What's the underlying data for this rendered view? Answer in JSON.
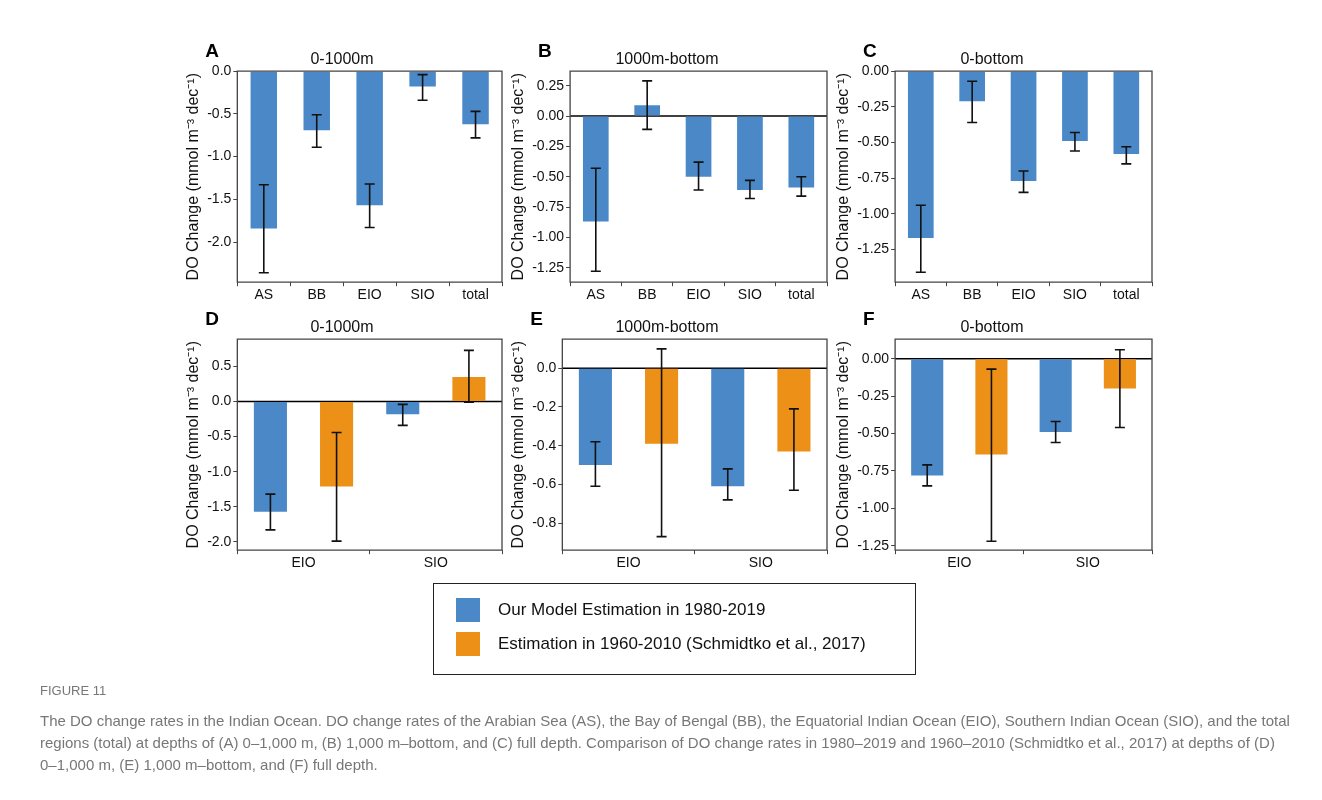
{
  "chart_data": [
    {
      "type": "bar",
      "title": "0-1000m",
      "ylabel": "DO Change (mmol m⁻³ dec⁻¹)",
      "annotations": [
        "A"
      ],
      "categories": [
        "AS",
        "BB",
        "EIO",
        "SIO",
        "total"
      ],
      "color": "#4a88c7",
      "values": [
        -1.84,
        -0.69,
        -1.57,
        -0.18,
        -0.62
      ],
      "errors": [
        [
          -2.36,
          -1.33
        ],
        [
          -0.89,
          -0.51
        ],
        [
          -1.83,
          -1.32
        ],
        [
          -0.34,
          -0.04
        ],
        [
          -0.78,
          -0.47
        ]
      ],
      "ylim": [
        -2.47,
        0
      ],
      "yticks": [
        {
          "value": 0,
          "label": "0.0"
        },
        {
          "value": -0.5,
          "label": "-0.5"
        },
        {
          "value": -1,
          "label": "-1.0"
        },
        {
          "value": -1.5,
          "label": "-1.5"
        },
        {
          "value": -2,
          "label": "-2.0"
        }
      ]
    },
    {
      "type": "bar",
      "title": "1000m-bottom",
      "ylabel": "DO Change (mmol m⁻³ dec⁻¹)",
      "annotations": [
        "B"
      ],
      "categories": [
        "AS",
        "BB",
        "EIO",
        "SIO",
        "total"
      ],
      "color": "#4a88c7",
      "values": [
        -0.87,
        0.09,
        -0.5,
        -0.61,
        -0.59
      ],
      "errors": [
        [
          -1.28,
          -0.43
        ],
        [
          -0.11,
          0.29
        ],
        [
          -0.61,
          -0.38
        ],
        [
          -0.68,
          -0.53
        ],
        [
          -0.66,
          -0.5
        ]
      ],
      "ylim": [
        -1.37,
        0.37
      ],
      "yticks": [
        {
          "value": 0.25,
          "label": "0.25"
        },
        {
          "value": 0,
          "label": "0.00"
        },
        {
          "value": -0.25,
          "label": "-0.25"
        },
        {
          "value": -0.5,
          "label": "-0.50"
        },
        {
          "value": -0.75,
          "label": "-0.75"
        },
        {
          "value": -1,
          "label": "-1.00"
        },
        {
          "value": -1.25,
          "label": "-1.25"
        }
      ],
      "ref_lines": [
        {
          "axis": "y",
          "value": 0,
          "color": "#000000"
        }
      ]
    },
    {
      "type": "bar",
      "title": "0-bottom",
      "ylabel": "DO Change (mmol m⁻³ dec⁻¹)",
      "annotations": [
        "C"
      ],
      "categories": [
        "AS",
        "BB",
        "EIO",
        "SIO",
        "total"
      ],
      "color": "#4a88c7",
      "values": [
        -1.17,
        -0.21,
        -0.77,
        -0.49,
        -0.58
      ],
      "errors": [
        [
          -1.41,
          -0.94
        ],
        [
          -0.36,
          -0.07
        ],
        [
          -0.85,
          -0.7
        ],
        [
          -0.56,
          -0.43
        ],
        [
          -0.65,
          -0.53
        ]
      ],
      "ylim": [
        -1.48,
        0
      ],
      "yticks": [
        {
          "value": 0,
          "label": "0.00"
        },
        {
          "value": -0.25,
          "label": "-0.25"
        },
        {
          "value": -0.5,
          "label": "-0.50"
        },
        {
          "value": -0.75,
          "label": "-0.75"
        },
        {
          "value": -1,
          "label": "-1.00"
        },
        {
          "value": -1.25,
          "label": "-1.25"
        }
      ]
    },
    {
      "type": "bar",
      "title": "0-1000m",
      "ylabel": "DO Change (mmol m⁻³ dec⁻¹)",
      "annotations": [
        "D"
      ],
      "categories": [
        "EIO",
        "SIO"
      ],
      "legend": "bottom",
      "series": [
        {
          "name": "Our Model Estimation in 1980-2019",
          "color": "#4a88c7",
          "values": [
            -1.57,
            -0.18
          ],
          "errors": [
            [
              -1.83,
              -1.32
            ],
            [
              -0.34,
              -0.04
            ]
          ]
        },
        {
          "name": "Estimation in 1960-2010 (Schmidtko et al., 2017)",
          "color": "#ec9018",
          "values": [
            -1.21,
            0.35
          ],
          "errors": [
            [
              -1.99,
              -0.44
            ],
            [
              -0.01,
              0.73
            ]
          ]
        }
      ],
      "ylim": [
        -2.12,
        0.89
      ],
      "yticks": [
        {
          "value": 0.5,
          "label": "0.5"
        },
        {
          "value": 0,
          "label": "0.0"
        },
        {
          "value": -0.5,
          "label": "-0.5"
        },
        {
          "value": -1,
          "label": "-1.0"
        },
        {
          "value": -1.5,
          "label": "-1.5"
        },
        {
          "value": -2,
          "label": "-2.0"
        }
      ],
      "ref_lines": [
        {
          "axis": "y",
          "value": 0,
          "color": "#000000"
        }
      ]
    },
    {
      "type": "bar",
      "title": "1000m-bottom",
      "ylabel": "DO Change (mmol m⁻³ dec⁻¹)",
      "annotations": [
        "E"
      ],
      "categories": [
        "EIO",
        "SIO"
      ],
      "series": [
        {
          "color": "#4a88c7",
          "values": [
            -0.5,
            -0.61
          ],
          "errors": [
            [
              -0.61,
              -0.38
            ],
            [
              -0.68,
              -0.52
            ]
          ]
        },
        {
          "color": "#ec9018",
          "values": [
            -0.39,
            -0.43
          ],
          "errors": [
            [
              -0.87,
              0.1
            ],
            [
              -0.63,
              -0.21
            ]
          ]
        }
      ],
      "ylim": [
        -0.94,
        0.15
      ],
      "yticks": [
        {
          "value": 0,
          "label": "0.0"
        },
        {
          "value": -0.2,
          "label": "-0.2"
        },
        {
          "value": -0.4,
          "label": "-0.4"
        },
        {
          "value": -0.6,
          "label": "-0.6"
        },
        {
          "value": -0.8,
          "label": "-0.8"
        }
      ],
      "ref_lines": [
        {
          "axis": "y",
          "value": 0,
          "color": "#000000"
        }
      ]
    },
    {
      "type": "bar",
      "title": "0-bottom",
      "ylabel": "DO Change (mmol m⁻³ dec⁻¹)",
      "categories": [
        "EIO",
        "SIO"
      ],
      "annotations": [
        "F",
        "FIGURE 11",
        "The DO change rates in the Indian Ocean. DO change rates of the Arabian Sea (AS), the Bay of Bengal (BB), the Equatorial Indian Ocean (EIO), Southern Indian Ocean (SIO), and the total regions (total) at depths of (A) 0–1,000 m, (B) 1,000 m–bottom, and (C) full depth. Comparison of DO change rates in 1980–2019 and 1960–2010 (Schmidtko et al., 2017) at depths of (D) 0–1,000 m, (E) 1,000 m–bottom, and (F) full depth."
      ],
      "series": [
        {
          "color": "#4a88c7",
          "values": [
            -0.78,
            -0.49
          ],
          "errors": [
            [
              -0.85,
              -0.71
            ],
            [
              -0.56,
              -0.42
            ]
          ]
        },
        {
          "color": "#ec9018",
          "values": [
            -0.64,
            -0.2
          ],
          "errors": [
            [
              -1.22,
              -0.07
            ],
            [
              -0.46,
              0.06
            ]
          ]
        }
      ],
      "ylim": [
        -1.28,
        0.13
      ],
      "yticks": [
        {
          "value": 0,
          "label": "0.00"
        },
        {
          "value": -0.25,
          "label": "-0.25"
        },
        {
          "value": -0.5,
          "label": "-0.50"
        },
        {
          "value": -0.75,
          "label": "-0.75"
        },
        {
          "value": -1,
          "label": "-1.00"
        },
        {
          "value": -1.25,
          "label": "-1.25"
        }
      ],
      "ref_lines": [
        {
          "axis": "y",
          "value": 0,
          "color": "#000000"
        }
      ]
    }
  ]
}
